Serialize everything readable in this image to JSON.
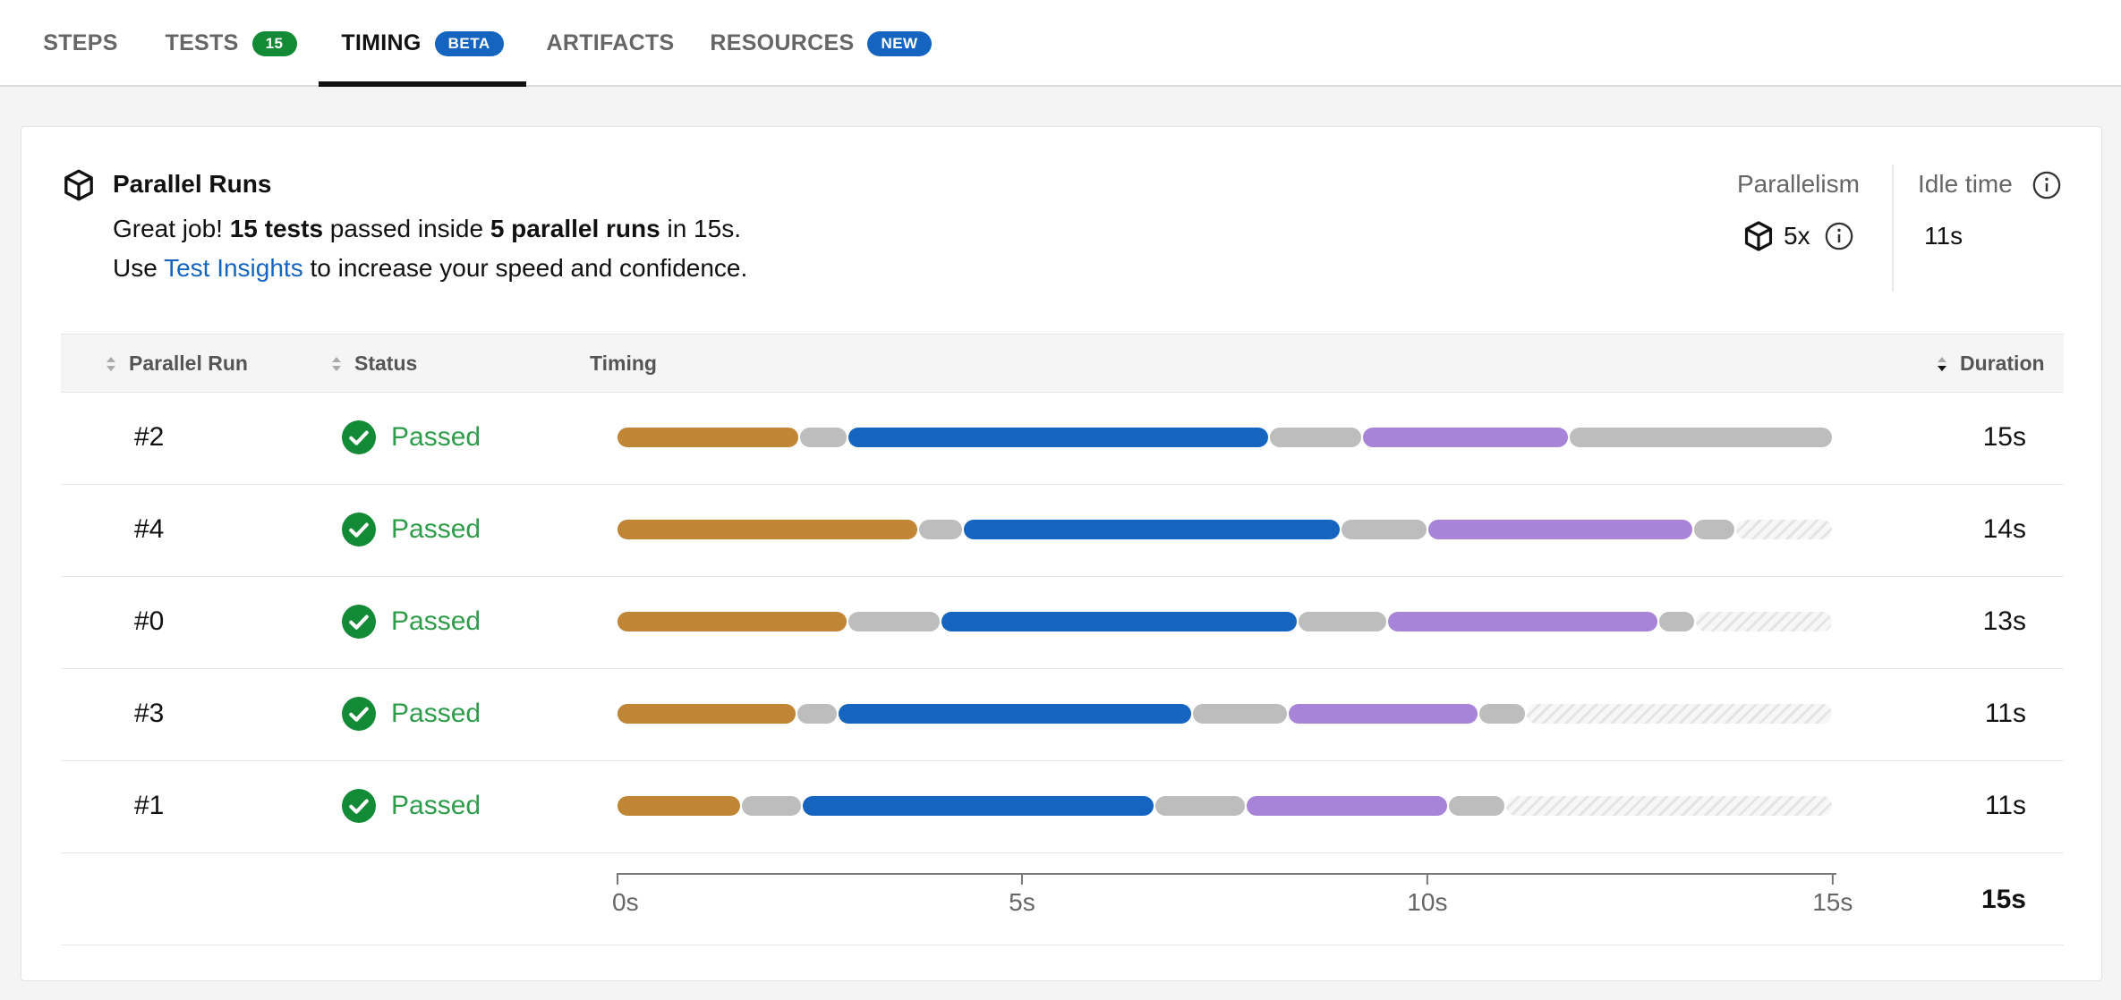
{
  "tabs": [
    {
      "label": "STEPS",
      "badge": null,
      "active": false
    },
    {
      "label": "TESTS",
      "badge": "15",
      "badge_color": "#138a36",
      "active": false
    },
    {
      "label": "TIMING",
      "badge": "BETA",
      "badge_color": "#1565c0",
      "active": true
    },
    {
      "label": "ARTIFACTS",
      "badge": null,
      "active": false
    },
    {
      "label": "RESOURCES",
      "badge": "NEW",
      "badge_color": "#1565c0",
      "active": false
    }
  ],
  "summary": {
    "icon": "cube-icon",
    "title": "Parallel Runs",
    "line1_prefix": "Great job! ",
    "line1_tests": "15 tests",
    "line1_mid": " passed inside ",
    "line1_runs": "5 parallel runs",
    "line1_suffix": " in 15s.",
    "line2_prefix": "Use ",
    "line2_link": "Test Insights",
    "line2_suffix": " to increase your speed and confidence."
  },
  "stats": {
    "parallelism_label": "Parallelism",
    "parallelism_value": "5x",
    "idle_label": "Idle time",
    "idle_value": "11s"
  },
  "table": {
    "headers": {
      "run": "Parallel Run",
      "status": "Status",
      "timing": "Timing",
      "duration": "Duration"
    },
    "rows": [
      {
        "run": "#2",
        "status": "Passed",
        "duration": "15s",
        "segments": [
          {
            "type": "setup",
            "start": 0,
            "end": 2.25
          },
          {
            "type": "idle",
            "start": 2.25,
            "end": 2.85
          },
          {
            "type": "tests",
            "start": 2.85,
            "end": 8.05
          },
          {
            "type": "idle",
            "start": 8.05,
            "end": 9.2
          },
          {
            "type": "teardown",
            "start": 9.2,
            "end": 11.75
          },
          {
            "type": "idle",
            "start": 11.75,
            "end": 15.0
          }
        ]
      },
      {
        "run": "#4",
        "status": "Passed",
        "duration": "14s",
        "segments": [
          {
            "type": "setup",
            "start": 0,
            "end": 3.72
          },
          {
            "type": "idle",
            "start": 3.72,
            "end": 4.27
          },
          {
            "type": "tests",
            "start": 4.27,
            "end": 8.93
          },
          {
            "type": "idle",
            "start": 8.93,
            "end": 10.0
          },
          {
            "type": "teardown",
            "start": 10.0,
            "end": 13.28
          },
          {
            "type": "idle",
            "start": 13.28,
            "end": 13.8
          },
          {
            "type": "empty",
            "start": 13.8,
            "end": 15.0
          }
        ]
      },
      {
        "run": "#0",
        "status": "Passed",
        "duration": "13s",
        "segments": [
          {
            "type": "setup",
            "start": 0,
            "end": 2.85
          },
          {
            "type": "idle",
            "start": 2.85,
            "end": 4.0
          },
          {
            "type": "tests",
            "start": 4.0,
            "end": 8.4
          },
          {
            "type": "idle",
            "start": 8.4,
            "end": 9.5
          },
          {
            "type": "teardown",
            "start": 9.5,
            "end": 12.85
          },
          {
            "type": "idle",
            "start": 12.85,
            "end": 13.3
          },
          {
            "type": "empty",
            "start": 13.3,
            "end": 15.0
          }
        ]
      },
      {
        "run": "#3",
        "status": "Passed",
        "duration": "11s",
        "segments": [
          {
            "type": "setup",
            "start": 0,
            "end": 2.22
          },
          {
            "type": "idle",
            "start": 2.22,
            "end": 2.73
          },
          {
            "type": "tests",
            "start": 2.73,
            "end": 7.1
          },
          {
            "type": "idle",
            "start": 7.1,
            "end": 8.28
          },
          {
            "type": "teardown",
            "start": 8.28,
            "end": 10.63
          },
          {
            "type": "idle",
            "start": 10.63,
            "end": 11.22
          },
          {
            "type": "empty",
            "start": 11.22,
            "end": 15.0
          }
        ]
      },
      {
        "run": "#1",
        "status": "Passed",
        "duration": "11s",
        "segments": [
          {
            "type": "setup",
            "start": 0,
            "end": 1.53
          },
          {
            "type": "idle",
            "start": 1.53,
            "end": 2.28
          },
          {
            "type": "tests",
            "start": 2.28,
            "end": 6.63
          },
          {
            "type": "idle",
            "start": 6.63,
            "end": 7.76
          },
          {
            "type": "teardown",
            "start": 7.76,
            "end": 10.26
          },
          {
            "type": "idle",
            "start": 10.26,
            "end": 10.96
          },
          {
            "type": "empty",
            "start": 10.96,
            "end": 15.0
          }
        ]
      }
    ],
    "axis": {
      "ticks": [
        0,
        5,
        10,
        15
      ],
      "tick_labels": [
        "0s",
        "5s",
        "10s",
        "15s"
      ],
      "max": 15.3
    },
    "total_duration": "15s"
  },
  "colors": {
    "setup": "#c08535",
    "idle": "#bdbdbd",
    "tests": "#1565c0",
    "teardown": "#a884d8",
    "passed": "#2e9c4a",
    "check": "#138a36",
    "accent": "#1565c0"
  }
}
